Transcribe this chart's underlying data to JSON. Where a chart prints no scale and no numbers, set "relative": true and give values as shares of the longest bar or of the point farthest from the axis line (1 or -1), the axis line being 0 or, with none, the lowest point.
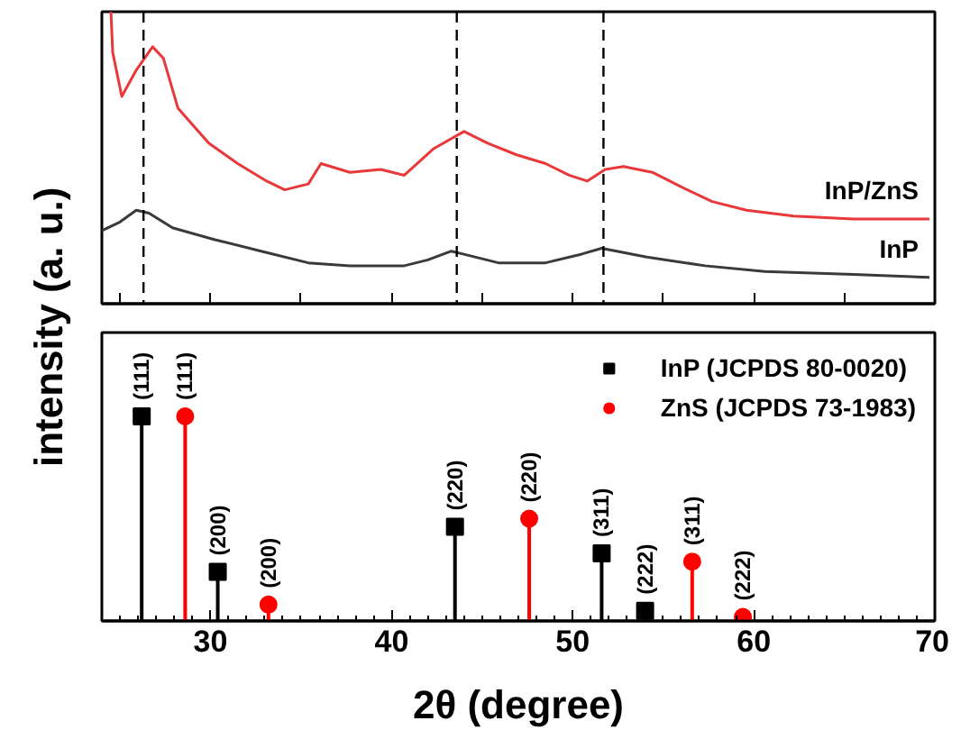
{
  "chart_data": [
    {
      "type": "line",
      "relative": true,
      "xlim": [
        24,
        70
      ],
      "xticks": [
        {
          "value": 25,
          "label": null
        },
        {
          "value": 30,
          "label": null
        },
        {
          "value": 35,
          "label": null
        },
        {
          "value": 40,
          "label": null
        },
        {
          "value": 45,
          "label": null
        },
        {
          "value": 50,
          "label": null
        },
        {
          "value": 55,
          "label": null
        },
        {
          "value": 60,
          "label": null
        },
        {
          "value": 65,
          "label": null
        }
      ],
      "tick_labels": false,
      "grid": false,
      "legend": false,
      "marker": "none",
      "line_style": "solid",
      "ref_lines": [
        {
          "axis": "x",
          "value": 26.3,
          "color": "#000000",
          "line_style": "dashed"
        },
        {
          "axis": "x",
          "value": 43.6,
          "color": "#000000",
          "line_style": "dashed"
        },
        {
          "axis": "x",
          "value": 51.7,
          "color": "#000000",
          "line_style": "dashed"
        }
      ],
      "series": [
        {
          "name": "InP/ZnS",
          "color": "#e8383a",
          "x": [
            24.5,
            24.6,
            25.1,
            25.9,
            26.8,
            27.4,
            28.2,
            29.9,
            31.5,
            33.1,
            34.1,
            35.4,
            36.1,
            37.7,
            39.4,
            40.7,
            42.3,
            44.0,
            45.3,
            46.9,
            48.5,
            49.8,
            50.8,
            51.8,
            52.8,
            54.4,
            56.0,
            57.7,
            59.6,
            62.2,
            65.5,
            69.7
          ],
          "values": [
            1.0,
            0.86,
            0.71,
            0.8,
            0.88,
            0.84,
            0.67,
            0.55,
            0.48,
            0.42,
            0.39,
            0.41,
            0.48,
            0.45,
            0.46,
            0.44,
            0.53,
            0.59,
            0.55,
            0.51,
            0.48,
            0.44,
            0.42,
            0.46,
            0.47,
            0.45,
            0.4,
            0.35,
            0.32,
            0.3,
            0.29,
            0.29
          ]
        },
        {
          "name": "InP",
          "color": "#3a3a3a",
          "x": [
            24.0,
            25.0,
            25.9,
            26.6,
            27.9,
            30.2,
            32.8,
            35.4,
            37.7,
            40.7,
            42.0,
            43.3,
            44.6,
            45.9,
            48.5,
            50.5,
            51.6,
            54.1,
            57.3,
            60.6,
            65.5,
            69.7
          ],
          "values": [
            0.25,
            0.28,
            0.32,
            0.31,
            0.26,
            0.22,
            0.18,
            0.14,
            0.13,
            0.13,
            0.15,
            0.18,
            0.16,
            0.14,
            0.14,
            0.17,
            0.19,
            0.16,
            0.13,
            0.11,
            0.1,
            0.09
          ]
        }
      ]
    },
    {
      "type": "lollipop",
      "relative": true,
      "xlim": [
        24,
        70
      ],
      "xticks": [
        30,
        40,
        50,
        60,
        70
      ],
      "xlabel": "2θ (degree)",
      "ylabel": "intensity (a. u.)",
      "grid": false,
      "legend": "top right",
      "annotations": [
        {
          "text": "(111)",
          "x": 26.2,
          "y": 1.0
        },
        {
          "text": "(200)",
          "x": 30.4,
          "y": 0.24
        },
        {
          "text": "(220)",
          "x": 43.5,
          "y": 0.46
        },
        {
          "text": "(311)",
          "x": 51.6,
          "y": 0.33
        },
        {
          "text": "(222)",
          "x": 54.0,
          "y": 0.05
        },
        {
          "text": "(111)",
          "x": 28.6,
          "y": 1.0
        },
        {
          "text": "(200)",
          "x": 33.2,
          "y": 0.08
        },
        {
          "text": "(220)",
          "x": 47.6,
          "y": 0.5
        },
        {
          "text": "(311)",
          "x": 56.6,
          "y": 0.29
        },
        {
          "text": "(222)",
          "x": 59.4,
          "y": 0.02
        }
      ],
      "series": [
        {
          "name": "InP (JCPDS 80-0020)",
          "color": "#000000",
          "marker": "square",
          "x": [
            26.2,
            30.4,
            43.5,
            51.6,
            54.0
          ],
          "values": [
            1.0,
            0.24,
            0.46,
            0.33,
            0.05
          ]
        },
        {
          "name": "ZnS (JCPDS 73-1983)",
          "color": "#ff0000",
          "marker": "circle",
          "x": [
            28.6,
            33.2,
            47.6,
            56.6,
            59.4
          ],
          "values": [
            1.0,
            0.08,
            0.5,
            0.29,
            0.02
          ]
        }
      ]
    }
  ]
}
